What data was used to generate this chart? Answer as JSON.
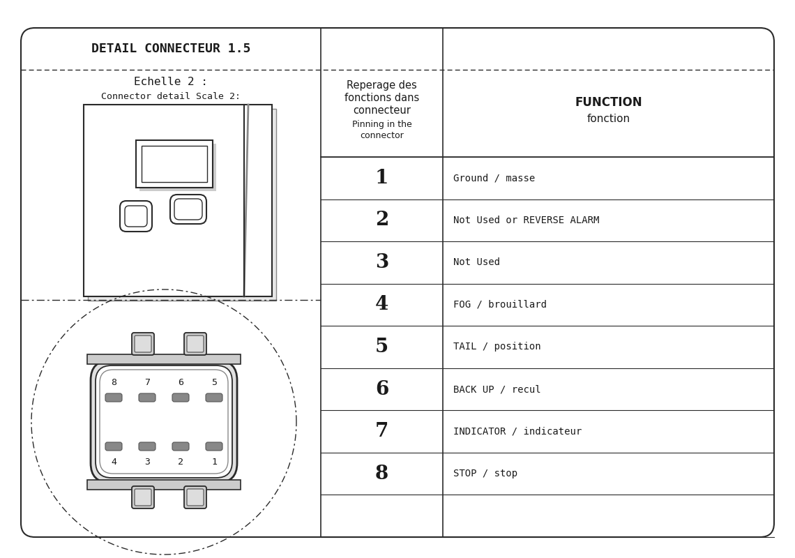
{
  "title": "DETAIL CONNECTEUR 1.5",
  "subtitle1": "Echelle 2 :",
  "subtitle2": "Connector detail Scale 2:",
  "col2_header_lines": [
    "Reperage des",
    "fonctions dans",
    "connecteur"
  ],
  "col2_subheader_lines": [
    "Pinning in the",
    "connector"
  ],
  "col3_header1": "FUNCTION",
  "col3_header2": "fonction",
  "pins": [
    "1",
    "2",
    "3",
    "4",
    "5",
    "6",
    "7",
    "8"
  ],
  "functions": [
    "Ground / masse",
    "Not Used or REVERSE ALARM",
    "Not Used",
    "FOG / brouillard",
    "TAIL / position",
    "BACK UP / recul",
    "INDICATOR / indicateur",
    "STOP / stop"
  ],
  "bg_color": "#ffffff",
  "line_color": "#2a2a2a",
  "text_color": "#1a1a1a"
}
